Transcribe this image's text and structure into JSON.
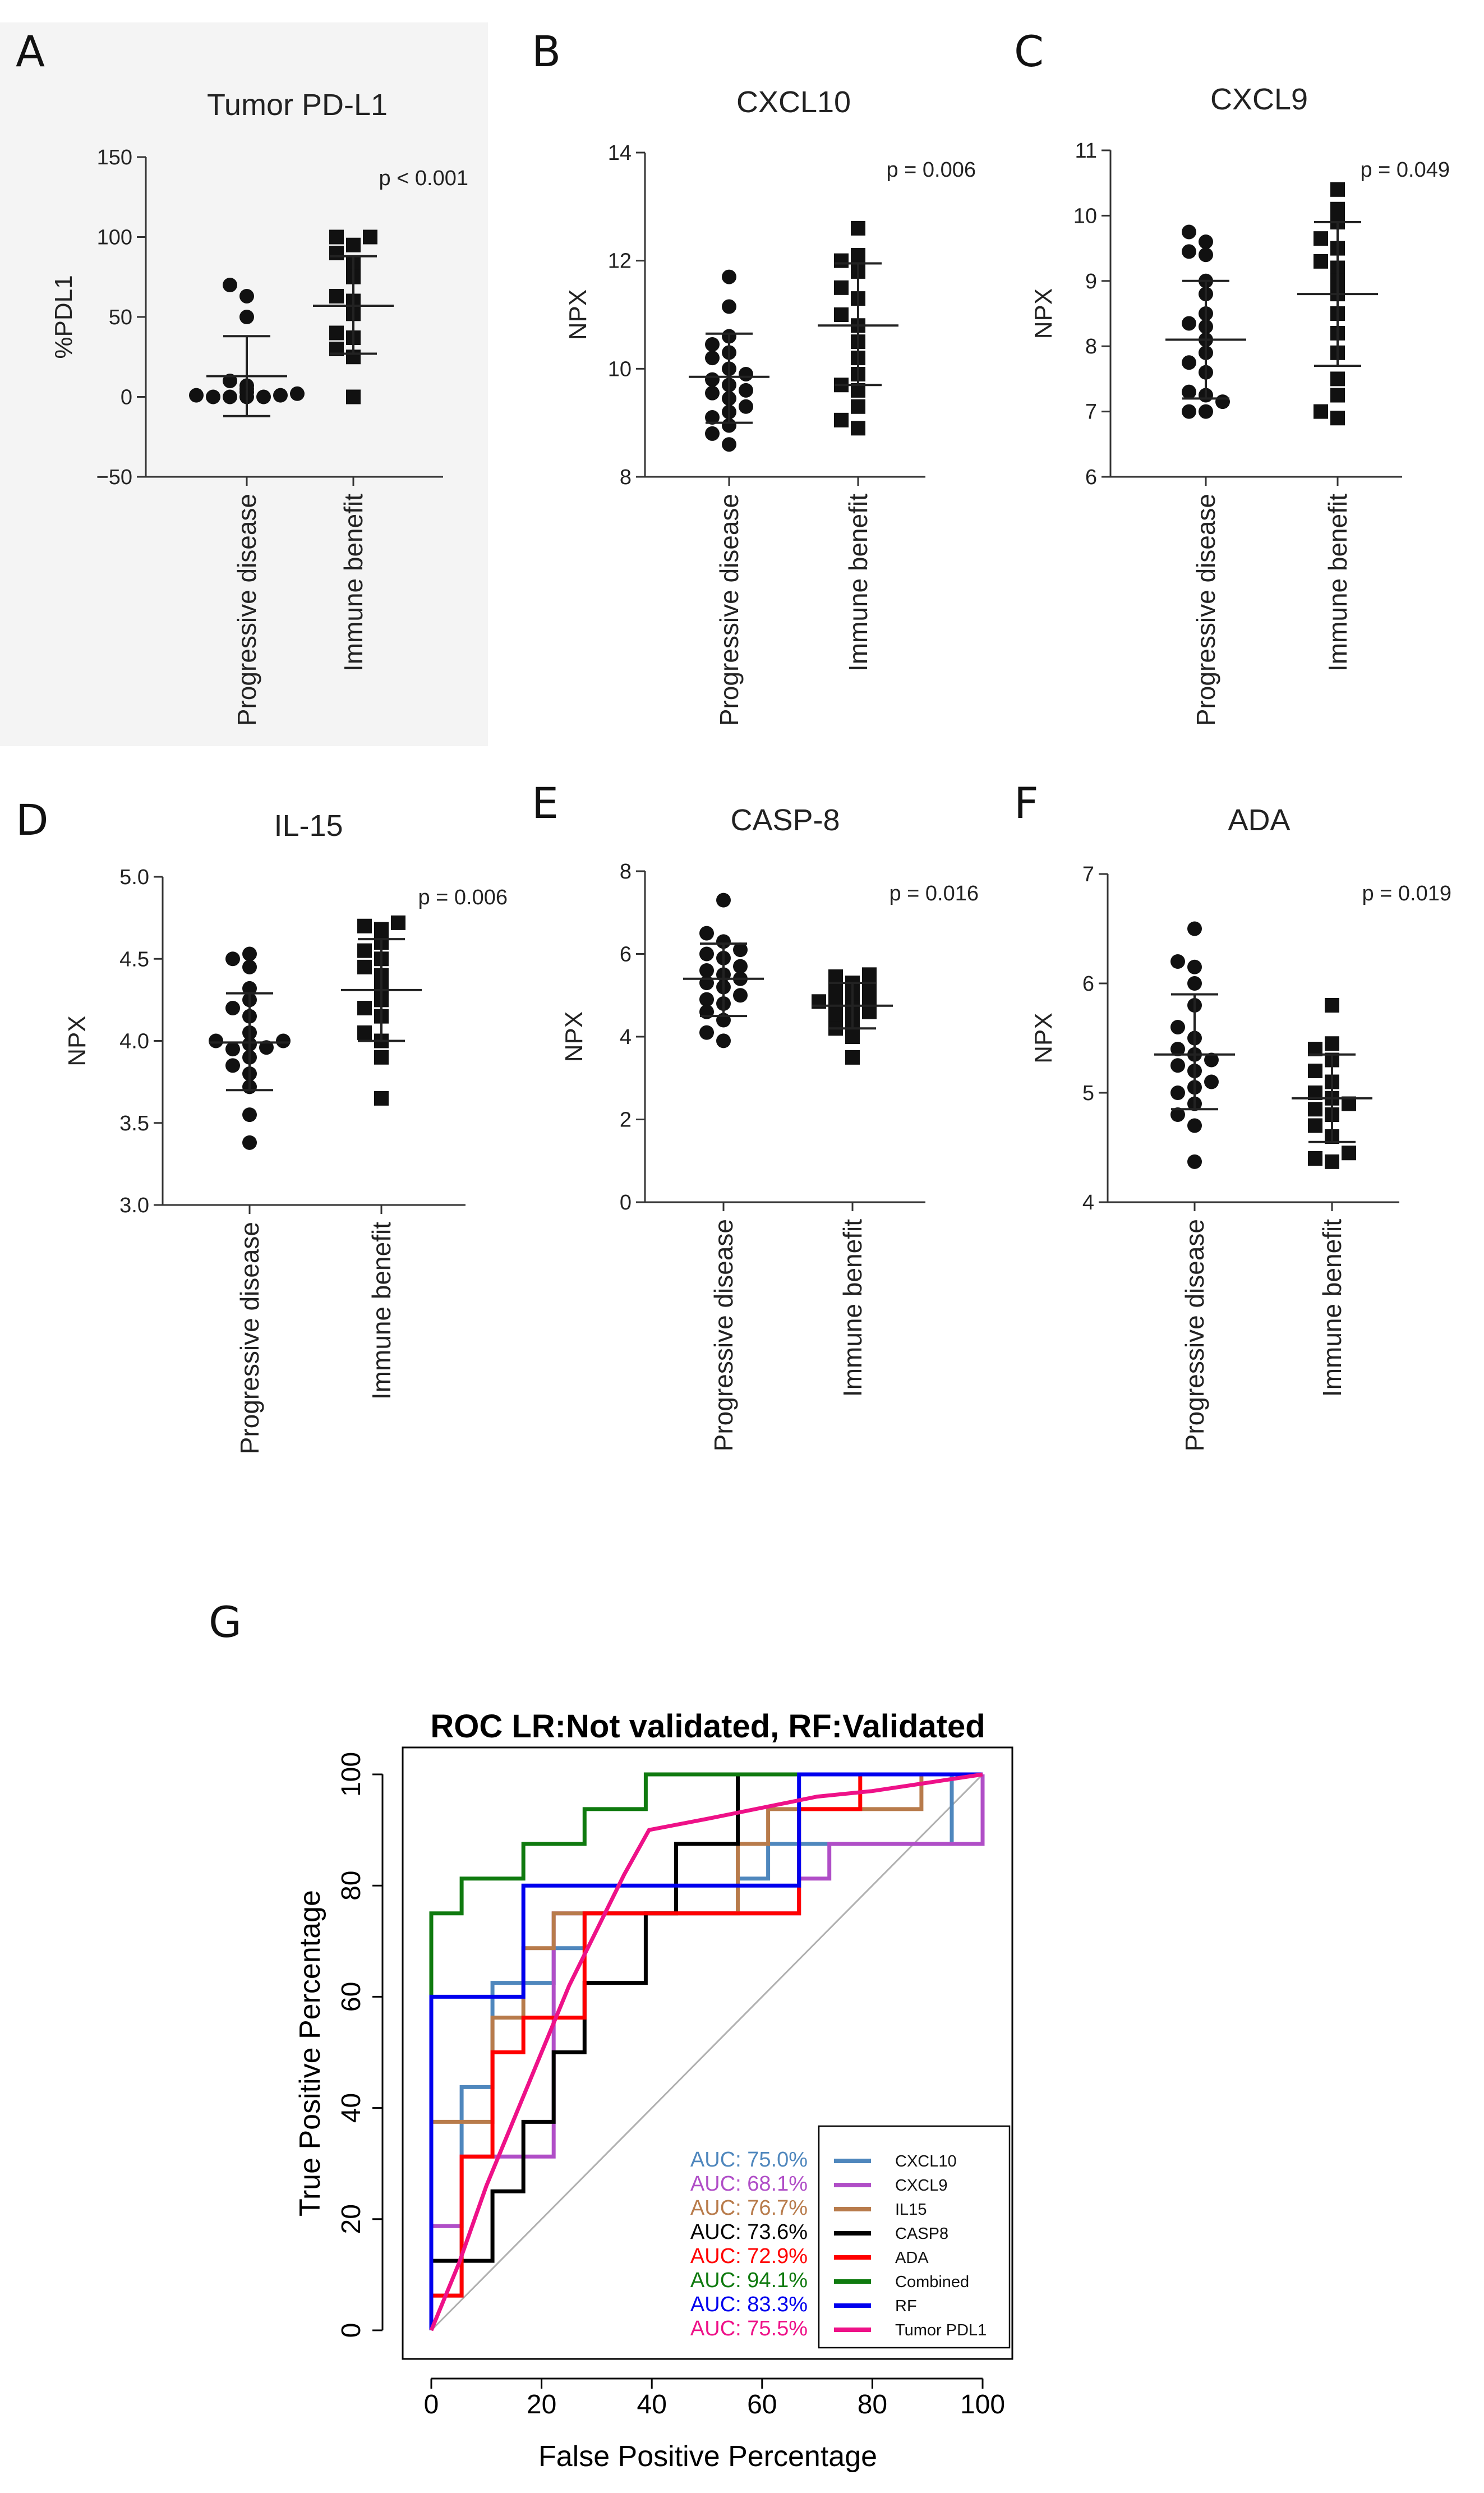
{
  "chart_data": [
    {
      "panel": "A",
      "type": "scatter",
      "title": "Tumor PD-L1",
      "ylabel": "%PDL1",
      "ylim": [
        -50,
        150
      ],
      "yticks": [
        -50,
        0,
        50,
        100,
        150
      ],
      "ytick_labels": [
        "−50",
        "0",
        "50",
        "100",
        "150"
      ],
      "categories": [
        "Progressive disease",
        "Immune benefit"
      ],
      "pvalue": "p < 0.001",
      "groups": [
        {
          "name": "Progressive disease",
          "marker": "circle",
          "mean": 13,
          "sd_low": -12,
          "sd_high": 38,
          "values": [
            70,
            63,
            50,
            10,
            7,
            5,
            3,
            2,
            1,
            1,
            0,
            0,
            0,
            0
          ]
        },
        {
          "name": "Immune benefit",
          "marker": "square",
          "mean": 57,
          "sd_low": 27,
          "sd_high": 88,
          "values": [
            100,
            100,
            95,
            90,
            83,
            75,
            63,
            60,
            52,
            40,
            37,
            30,
            25,
            0
          ]
        }
      ]
    },
    {
      "panel": "B",
      "type": "scatter",
      "title": "CXCL10",
      "ylabel": "NPX",
      "ylim": [
        8,
        14
      ],
      "yticks": [
        8,
        10,
        12,
        14
      ],
      "ytick_labels": [
        "8",
        "10",
        "12",
        "14"
      ],
      "categories": [
        "Progressive disease",
        "Immune benefit"
      ],
      "pvalue": "p = 0.006",
      "groups": [
        {
          "name": "Progressive disease",
          "marker": "circle",
          "mean": 9.85,
          "sd_low": 9.0,
          "sd_high": 10.65,
          "values": [
            11.7,
            11.15,
            10.6,
            10.45,
            10.3,
            10.2,
            10.0,
            9.9,
            9.8,
            9.7,
            9.6,
            9.55,
            9.45,
            9.3,
            9.2,
            9.1,
            8.95,
            8.8,
            8.6
          ]
        },
        {
          "name": "Immune benefit",
          "marker": "square",
          "mean": 10.8,
          "sd_low": 9.7,
          "sd_high": 11.95,
          "values": [
            12.6,
            12.1,
            12.0,
            11.8,
            11.5,
            11.3,
            11.0,
            10.8,
            10.5,
            10.2,
            9.9,
            9.7,
            9.6,
            9.3,
            9.05,
            8.9
          ]
        }
      ]
    },
    {
      "panel": "C",
      "type": "scatter",
      "title": "CXCL9",
      "ylabel": "NPX",
      "ylim": [
        6,
        11
      ],
      "yticks": [
        6,
        7,
        8,
        9,
        10,
        11
      ],
      "ytick_labels": [
        "6",
        "7",
        "8",
        "9",
        "10",
        "11"
      ],
      "categories": [
        "Progressive disease",
        "Immune benefit"
      ],
      "pvalue": "p = 0.049",
      "groups": [
        {
          "name": "Progressive disease",
          "marker": "circle",
          "mean": 8.1,
          "sd_low": 7.2,
          "sd_high": 9.0,
          "values": [
            9.75,
            9.6,
            9.45,
            9.4,
            9.0,
            8.8,
            8.5,
            8.35,
            8.3,
            8.1,
            7.9,
            7.75,
            7.6,
            7.3,
            7.25,
            7.15,
            7.0,
            7.0
          ]
        },
        {
          "name": "Immune benefit",
          "marker": "square",
          "mean": 8.8,
          "sd_low": 7.7,
          "sd_high": 9.9,
          "values": [
            10.4,
            10.1,
            9.9,
            9.65,
            9.5,
            9.3,
            9.2,
            9.0,
            8.8,
            8.5,
            8.2,
            7.9,
            7.5,
            7.25,
            7.0,
            6.9
          ]
        }
      ]
    },
    {
      "panel": "D",
      "type": "scatter",
      "title": "IL-15",
      "ylabel": "NPX",
      "ylim": [
        3.0,
        5.0
      ],
      "yticks": [
        3.0,
        3.5,
        4.0,
        4.5,
        5.0
      ],
      "ytick_labels": [
        "3.0",
        "3.5",
        "4.0",
        "4.5",
        "5.0"
      ],
      "categories": [
        "Progressive disease",
        "Immune benefit"
      ],
      "pvalue": "p = 0.006",
      "groups": [
        {
          "name": "Progressive disease",
          "marker": "circle",
          "mean": 3.99,
          "sd_low": 3.7,
          "sd_high": 4.29,
          "values": [
            4.53,
            4.5,
            4.45,
            4.32,
            4.25,
            4.2,
            4.15,
            4.05,
            4.0,
            4.0,
            3.98,
            3.96,
            3.95,
            3.9,
            3.85,
            3.8,
            3.72,
            3.55,
            3.38
          ]
        },
        {
          "name": "Immune benefit",
          "marker": "square",
          "mean": 4.31,
          "sd_low": 4.0,
          "sd_high": 4.62,
          "values": [
            4.72,
            4.7,
            4.68,
            4.6,
            4.55,
            4.5,
            4.45,
            4.4,
            4.32,
            4.25,
            4.2,
            4.15,
            4.05,
            4.0,
            3.9,
            3.65
          ]
        }
      ]
    },
    {
      "panel": "E",
      "type": "scatter",
      "title": "CASP-8",
      "ylabel": "NPX",
      "ylim": [
        0,
        8
      ],
      "yticks": [
        0,
        2,
        4,
        6,
        8
      ],
      "ytick_labels": [
        "0",
        "2",
        "4",
        "6",
        "8"
      ],
      "categories": [
        "Progressive disease",
        "Immune benefit"
      ],
      "pvalue": "p = 0.016",
      "groups": [
        {
          "name": "Progressive disease",
          "marker": "circle",
          "mean": 5.4,
          "sd_low": 4.5,
          "sd_high": 6.25,
          "values": [
            7.3,
            6.5,
            6.3,
            6.1,
            6.0,
            5.9,
            5.7,
            5.6,
            5.5,
            5.4,
            5.3,
            5.2,
            5.0,
            4.9,
            4.8,
            4.6,
            4.4,
            4.1,
            3.9
          ]
        },
        {
          "name": "Immune benefit",
          "marker": "square",
          "mean": 4.75,
          "sd_low": 4.2,
          "sd_high": 5.3,
          "values": [
            5.5,
            5.45,
            5.3,
            5.2,
            5.1,
            5.0,
            4.9,
            4.85,
            4.8,
            4.7,
            4.6,
            4.5,
            4.4,
            4.2,
            4.0,
            3.5
          ]
        }
      ]
    },
    {
      "panel": "F",
      "type": "scatter",
      "title": "ADA",
      "ylabel": "NPX",
      "ylim": [
        4,
        7
      ],
      "yticks": [
        4,
        5,
        6,
        7
      ],
      "ytick_labels": [
        "4",
        "5",
        "6",
        "7"
      ],
      "categories": [
        "Progressive disease",
        "Immune benefit"
      ],
      "pvalue": "p = 0.019",
      "groups": [
        {
          "name": "Progressive disease",
          "marker": "circle",
          "mean": 5.35,
          "sd_low": 4.85,
          "sd_high": 5.9,
          "values": [
            6.5,
            6.2,
            6.15,
            6.0,
            5.8,
            5.6,
            5.5,
            5.4,
            5.35,
            5.3,
            5.25,
            5.2,
            5.1,
            5.05,
            5.0,
            4.9,
            4.8,
            4.7,
            4.37
          ]
        },
        {
          "name": "Immune benefit",
          "marker": "square",
          "mean": 4.95,
          "sd_low": 4.55,
          "sd_high": 5.35,
          "values": [
            5.8,
            5.45,
            5.4,
            5.3,
            5.2,
            5.1,
            5.0,
            4.95,
            4.9,
            4.85,
            4.8,
            4.7,
            4.6,
            4.45,
            4.4,
            4.37
          ]
        }
      ]
    },
    {
      "panel": "G",
      "type": "line",
      "title": "ROC LR:Not validated, RF:Validated",
      "xlabel": "False Positive Percentage",
      "ylabel": "True Positive Percentage",
      "xlim": [
        0,
        100
      ],
      "ylim": [
        0,
        100
      ],
      "xticks": [
        0,
        20,
        40,
        60,
        80,
        100
      ],
      "yticks": [
        0,
        20,
        40,
        60,
        80,
        100
      ],
      "legend_position": "bottom-right",
      "series": [
        {
          "name": "CXCL10",
          "auc_label": "AUC: 75.0%",
          "color": "#4f87bd",
          "x": [
            0,
            0,
            5.5,
            5.5,
            11.1,
            11.1,
            16.7,
            16.7,
            22.2,
            22.2,
            27.8,
            27.8,
            33.3,
            33.3,
            44.4,
            44.4,
            55.6,
            55.6,
            61.1,
            61.1,
            66.7,
            66.7,
            94.4,
            94.4,
            100
          ],
          "y": [
            0,
            6.25,
            6.25,
            43.75,
            43.75,
            62.5,
            62.5,
            62.5,
            62.5,
            68.75,
            68.75,
            75,
            75,
            75,
            75,
            75,
            75,
            81.25,
            81.25,
            87.5,
            87.5,
            87.5,
            87.5,
            100,
            100
          ]
        },
        {
          "name": "CXCL9",
          "auc_label": "AUC: 68.1%",
          "color": "#b04ec7",
          "x": [
            0,
            0,
            5.5,
            5.5,
            22.2,
            22.2,
            33.3,
            33.3,
            55.6,
            55.6,
            66.7,
            66.7,
            72.2,
            72.2,
            100,
            100
          ],
          "y": [
            0,
            18.75,
            18.75,
            31.25,
            31.25,
            75,
            75,
            75,
            75,
            75,
            75,
            81.25,
            81.25,
            87.5,
            87.5,
            100
          ]
        },
        {
          "name": "IL15",
          "auc_label": "AUC: 76.7%",
          "color": "#b87b4b",
          "x": [
            0,
            0,
            11.1,
            11.1,
            16.7,
            16.7,
            22.2,
            22.2,
            27.8,
            27.8,
            55.6,
            55.6,
            61.1,
            61.1,
            88.9,
            88.9,
            100
          ],
          "y": [
            0,
            37.5,
            37.5,
            56.25,
            56.25,
            68.75,
            68.75,
            75,
            75,
            75,
            75,
            87.5,
            87.5,
            93.75,
            93.75,
            100,
            100
          ]
        },
        {
          "name": "CASP8",
          "auc_label": "AUC: 73.6%",
          "color": "#000000",
          "x": [
            0,
            0,
            11.1,
            11.1,
            16.7,
            16.7,
            22.2,
            22.2,
            27.8,
            27.8,
            38.9,
            38.9,
            44.4,
            44.4,
            55.6,
            55.6,
            61.1,
            61.1,
            77.8,
            77.8,
            100
          ],
          "y": [
            0,
            12.5,
            12.5,
            25,
            25,
            37.5,
            37.5,
            50,
            50,
            62.5,
            62.5,
            75,
            75,
            87.5,
            87.5,
            100,
            100,
            100,
            100,
            100,
            100
          ]
        },
        {
          "name": "ADA",
          "auc_label": "AUC: 72.9%",
          "color": "#ff0000",
          "x": [
            0,
            0,
            5.5,
            5.5,
            11.1,
            11.1,
            16.7,
            16.7,
            22.2,
            22.2,
            27.8,
            27.8,
            66.7,
            66.7,
            77.8,
            77.8,
            100
          ],
          "y": [
            0,
            6.25,
            6.25,
            31.25,
            31.25,
            50,
            50,
            56.25,
            56.25,
            56.25,
            56.25,
            75,
            75,
            93.75,
            93.75,
            100,
            100
          ]
        },
        {
          "name": "Combined",
          "auc_label": "AUC: 94.1%",
          "color": "#0f7a0f",
          "x": [
            0,
            0,
            5.5,
            5.5,
            16.7,
            16.7,
            27.8,
            27.8,
            33.3,
            33.3,
            38.9,
            38.9,
            100
          ],
          "y": [
            0,
            75,
            75,
            81.25,
            81.25,
            87.5,
            87.5,
            93.75,
            93.75,
            93.75,
            93.75,
            100,
            100
          ]
        },
        {
          "name": "RF",
          "auc_label": "AUC: 83.3%",
          "color": "#0000ee",
          "x": [
            0,
            0,
            16.7,
            16.7,
            66.7,
            66.7,
            100
          ],
          "y": [
            0,
            60,
            60,
            80,
            80,
            100,
            100
          ]
        },
        {
          "name": "Tumor PDL1",
          "auc_label": "AUC: 75.5%",
          "color": "#ee1188",
          "x": [
            0,
            5,
            10,
            15,
            20,
            25,
            30,
            35,
            39.5,
            50,
            60,
            70,
            80,
            90,
            100
          ],
          "y": [
            0,
            12,
            26,
            38,
            50,
            62,
            72,
            82,
            90,
            92,
            94,
            96,
            97,
            98.5,
            100
          ]
        }
      ]
    }
  ]
}
